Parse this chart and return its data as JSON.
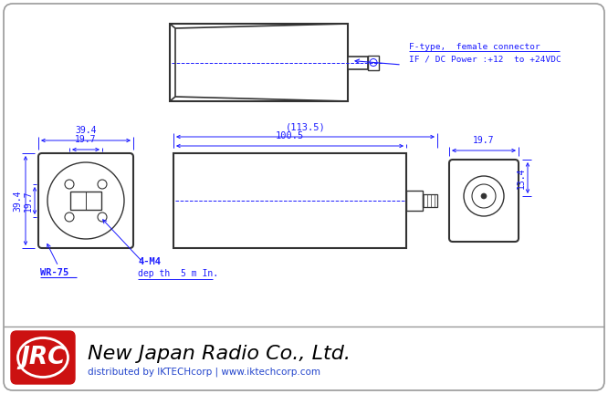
{
  "bg_color": "#ffffff",
  "line_color": "#1a1aff",
  "dim_color": "#1a1aff",
  "body_color": "#333333",
  "border_color": "#999999",
  "jrc_red": "#cc1111",
  "jrc_text": "JRC",
  "company_name": "New Japan Radio Co., Ltd.",
  "dist_text": "distributed by IKTECHcorp | www.iktechcorp.com",
  "ann_line1": "F-type,  female connector",
  "ann_line2": "IF / DC Power :+12  to +24VDC",
  "dim_39_4": "39.4",
  "dim_19_7": "19.7",
  "dim_113_5": "(113.5)",
  "dim_100_5": "100.5",
  "dim_19_7r": "19.7",
  "dim_13_4": "13.4",
  "label_wr75": "WR-75",
  "label_4m4": "4-M4",
  "label_depth": "dep th  5 m In."
}
